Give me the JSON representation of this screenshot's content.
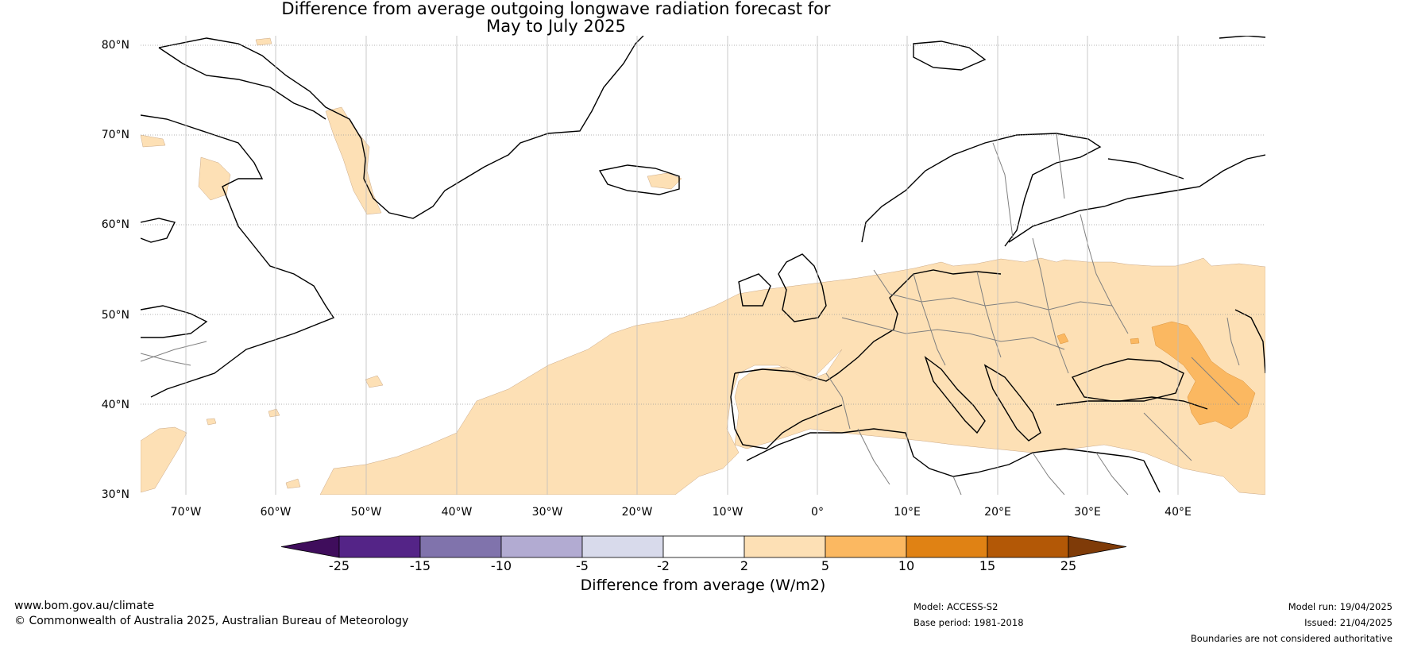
{
  "title_line1": "Difference from average outgoing longwave radiation forecast for",
  "title_line2": "May to July 2025",
  "map": {
    "lat_labels": [
      "80°N",
      "70°N",
      "60°N",
      "50°N",
      "40°N",
      "30°N"
    ],
    "lon_labels": [
      "70°W",
      "60°W",
      "50°W",
      "40°W",
      "30°W",
      "20°W",
      "10°W",
      "0°",
      "10°E",
      "20°E",
      "30°E",
      "40°E"
    ],
    "colors": {
      "ocean": "#ffffff",
      "tan_2_5": "#fde0b5",
      "orange_5_10": "#fbb861",
      "coast": "#000000",
      "borders": "#7f7f7f",
      "gridline": "#9a9a9a"
    }
  },
  "colorbar": {
    "ticks": [
      "-25",
      "-15",
      "-10",
      "-5",
      "-2",
      "2",
      "5",
      "10",
      "15",
      "25"
    ],
    "colors": [
      "#3f0d5c",
      "#542487",
      "#8073ac",
      "#b2abd2",
      "#d8daeb",
      "#ffffff",
      "#fde0b5",
      "#fbb861",
      "#e08214",
      "#b35806",
      "#7f3b08"
    ],
    "label": "Difference from average (W/m2)"
  },
  "footer": {
    "url": "www.bom.gov.au/climate",
    "copyright": "© Commonwealth of Australia 2025, Australian Bureau of Meteorology",
    "model": "Model: ACCESS-S2",
    "base_period": "Base period: 1981-2018",
    "model_run": "Model run: 19/04/2025",
    "issued": "Issued: 21/04/2025",
    "disclaimer": "Boundaries are not considered authoritative"
  }
}
